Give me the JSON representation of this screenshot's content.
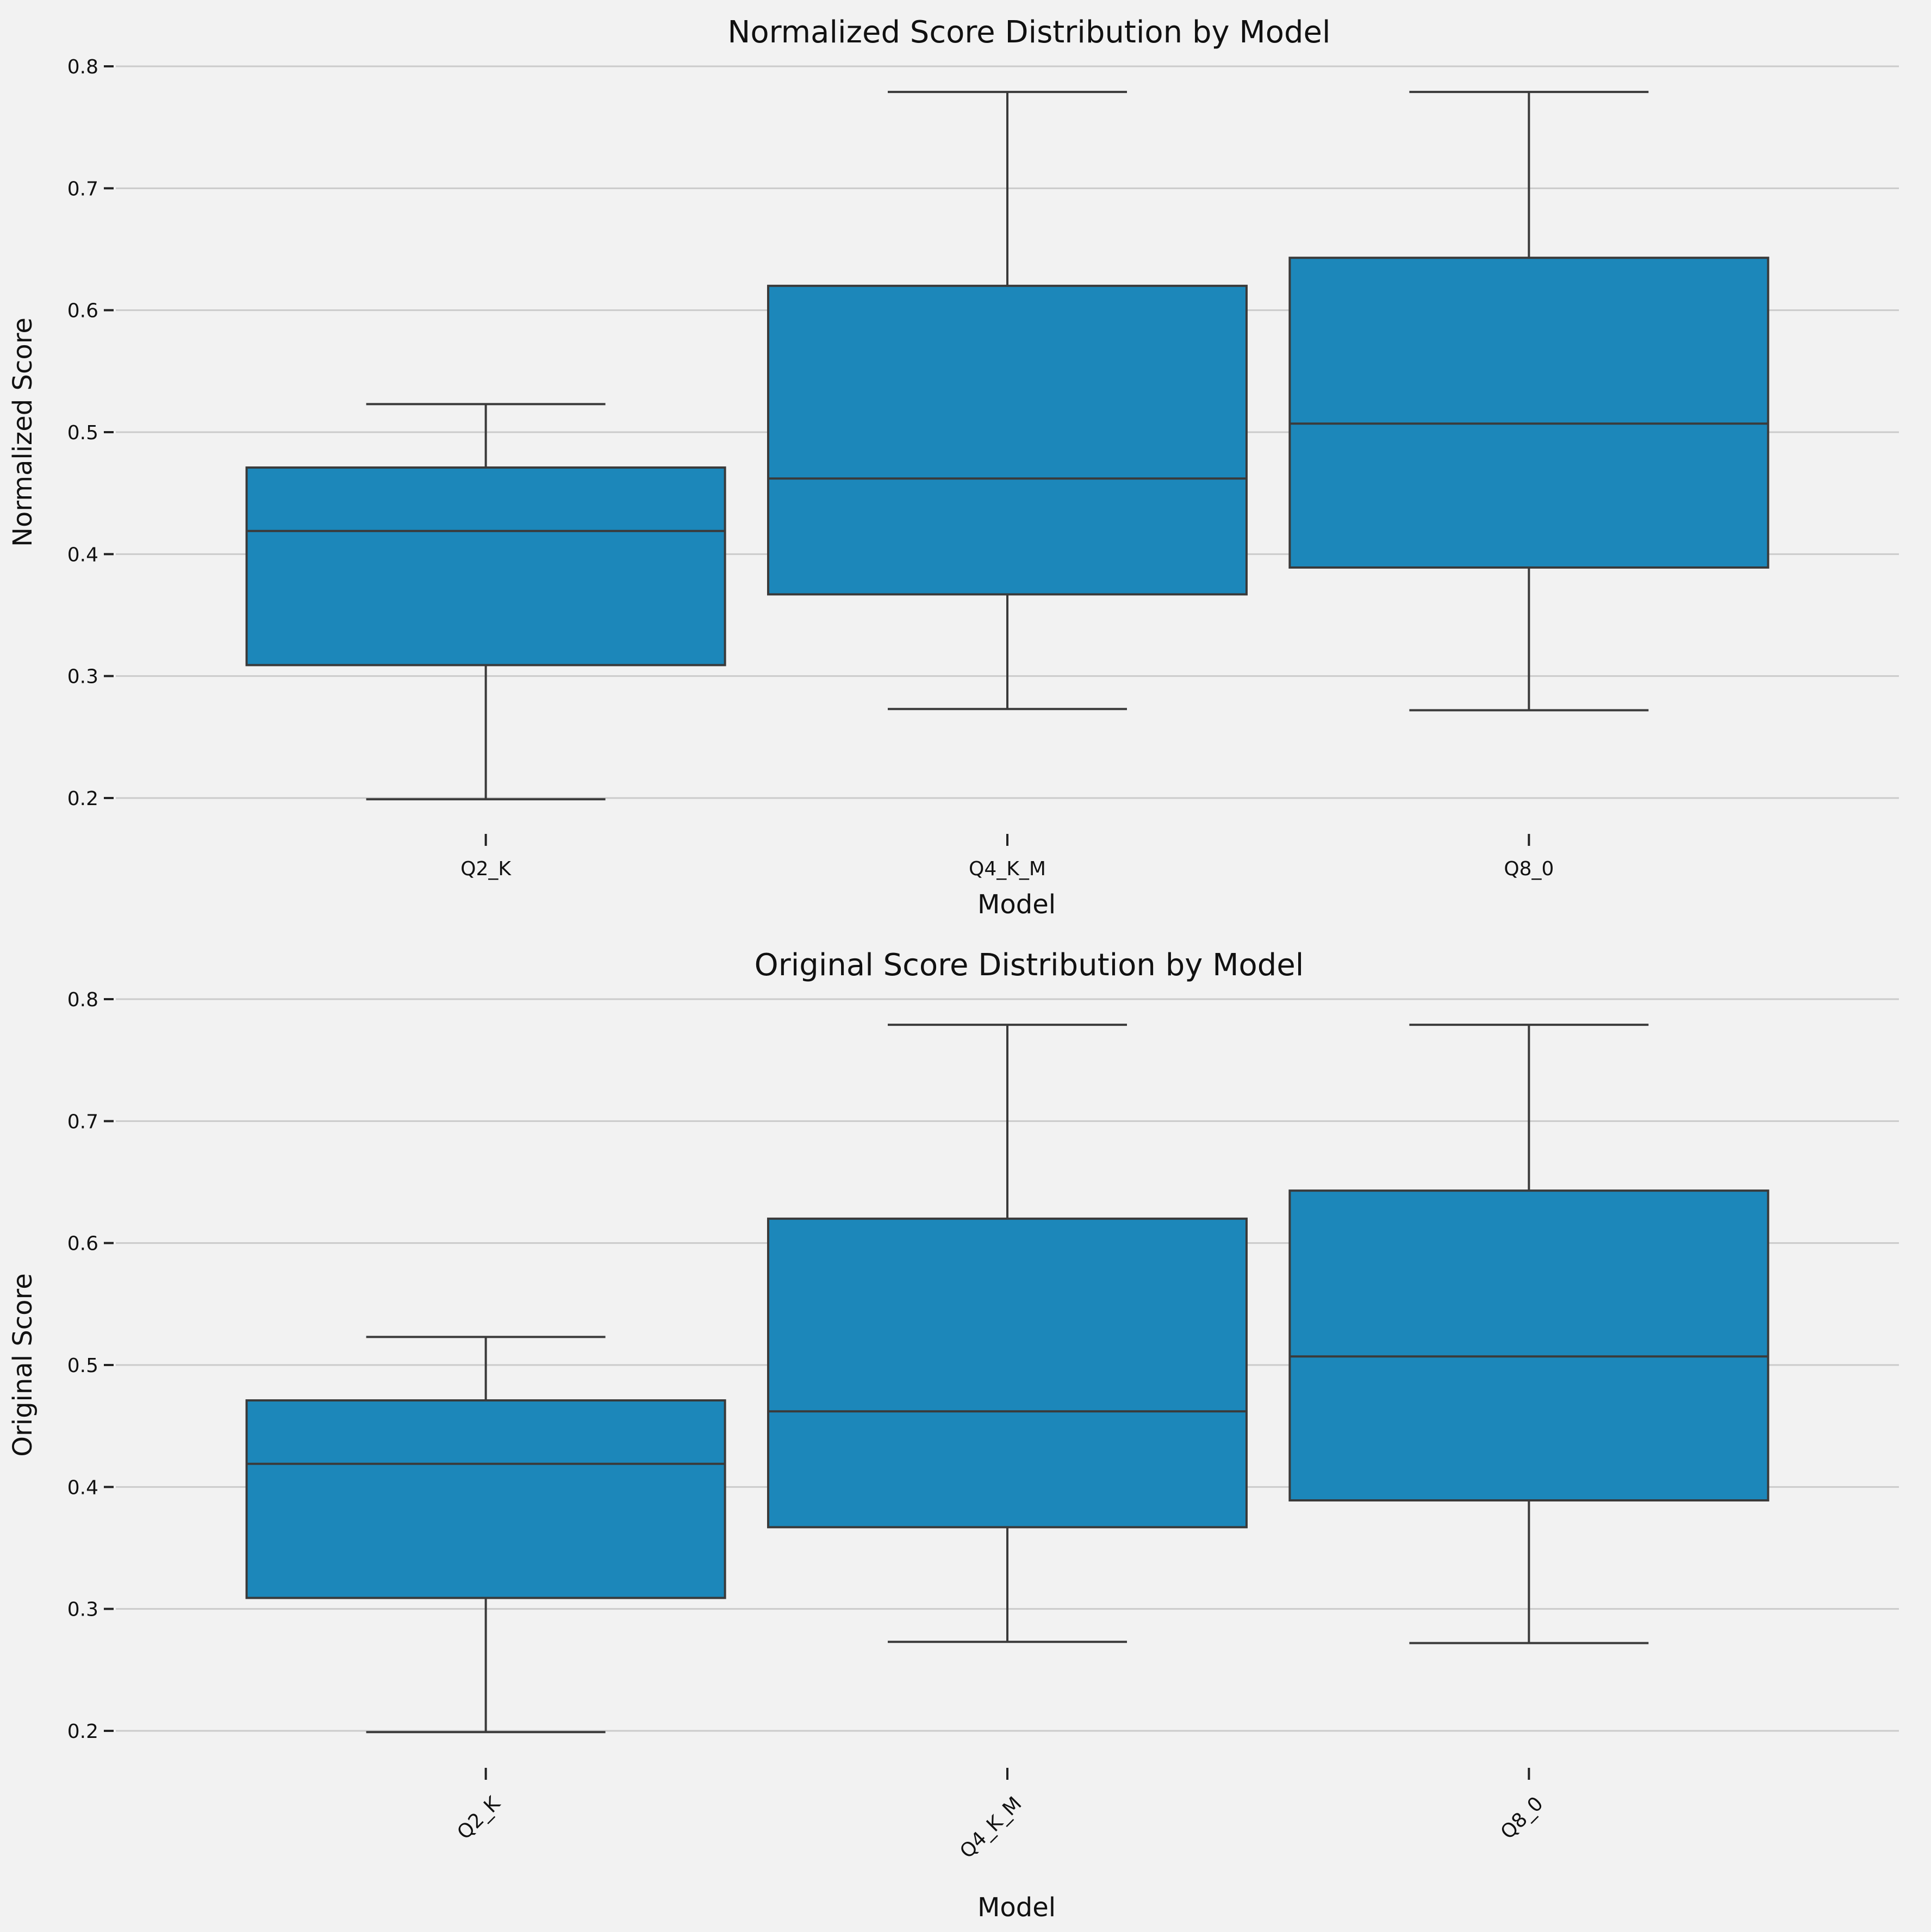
{
  "chart_data": [
    {
      "type": "box",
      "title": "Normalized Score Distribution by Model",
      "xlabel": "Model",
      "ylabel": "Normalized Score",
      "ylim": [
        0.18,
        0.8
      ],
      "yticks": [
        0.2,
        0.3,
        0.4,
        0.5,
        0.6,
        0.7,
        0.8
      ],
      "ytick_labels": [
        "0.2",
        "0.3",
        "0.4",
        "0.5",
        "0.6",
        "0.7",
        "0.8"
      ],
      "grid": "horizontal",
      "xtick_rotation": 0,
      "categories": [
        "Q2_K",
        "Q4_K_M",
        "Q8_0"
      ],
      "boxes": [
        {
          "category": "Q2_K",
          "min": 0.199,
          "q1": 0.309,
          "median": 0.419,
          "q3": 0.471,
          "max": 0.523
        },
        {
          "category": "Q4_K_M",
          "min": 0.273,
          "q1": 0.367,
          "median": 0.462,
          "q3": 0.62,
          "max": 0.779
        },
        {
          "category": "Q8_0",
          "min": 0.272,
          "q1": 0.389,
          "median": 0.507,
          "q3": 0.643,
          "max": 0.779
        }
      ]
    },
    {
      "type": "box",
      "title": "Original Score Distribution by Model",
      "xlabel": "Model",
      "ylabel": "Original Score",
      "ylim": [
        0.18,
        0.8
      ],
      "yticks": [
        0.2,
        0.3,
        0.4,
        0.5,
        0.6,
        0.7,
        0.8
      ],
      "ytick_labels": [
        "0.2",
        "0.3",
        "0.4",
        "0.5",
        "0.6",
        "0.7",
        "0.8"
      ],
      "grid": "horizontal",
      "xtick_rotation": 45,
      "categories": [
        "Q2_K",
        "Q4_K_M",
        "Q8_0"
      ],
      "boxes": [
        {
          "category": "Q2_K",
          "min": 0.199,
          "q1": 0.309,
          "median": 0.419,
          "q3": 0.471,
          "max": 0.523
        },
        {
          "category": "Q4_K_M",
          "min": 0.273,
          "q1": 0.367,
          "median": 0.462,
          "q3": 0.62,
          "max": 0.779
        },
        {
          "category": "Q8_0",
          "min": 0.272,
          "q1": 0.389,
          "median": 0.507,
          "q3": 0.643,
          "max": 0.779
        }
      ]
    }
  ],
  "colors": {
    "background": "#f2f2f2",
    "box_fill": "#1c87ba",
    "line": "#3a3a3a",
    "grid": "#cbcbcb"
  }
}
